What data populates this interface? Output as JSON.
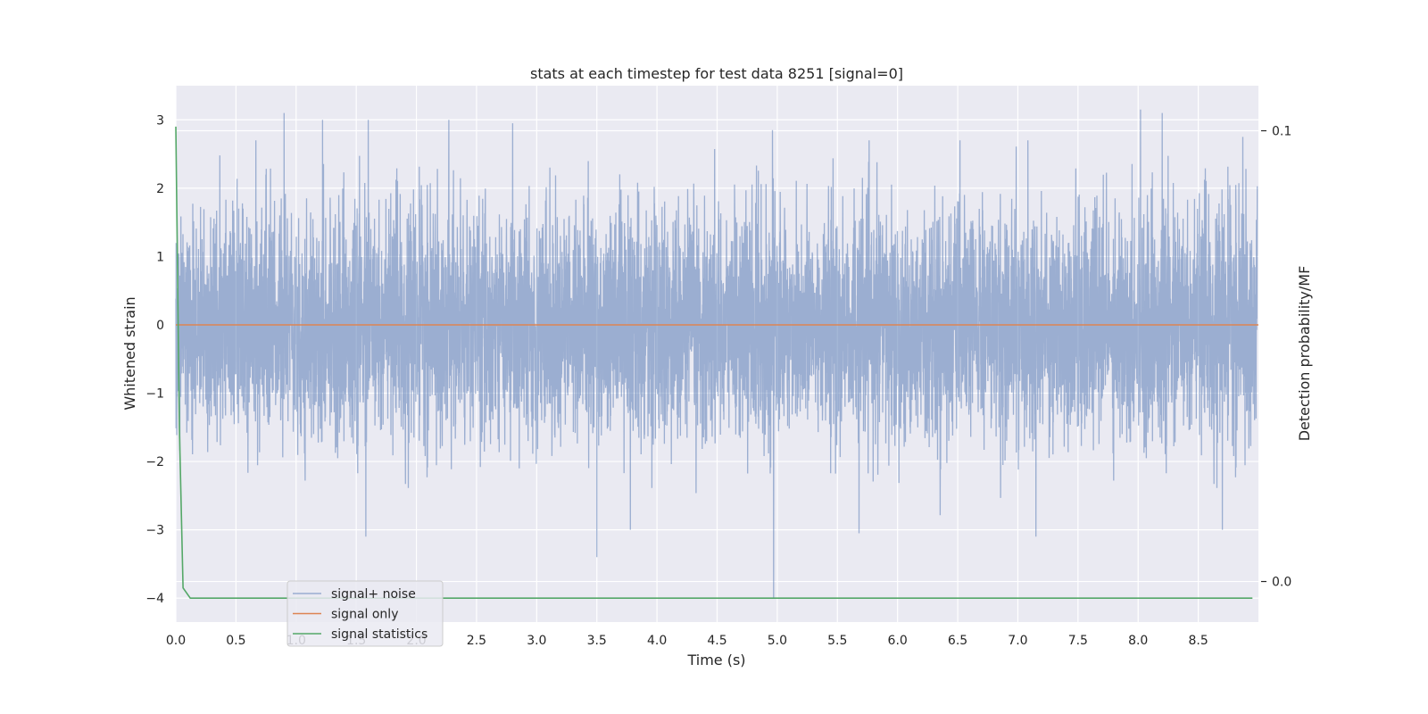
{
  "chart_data": {
    "type": "line",
    "title": "stats at each timestep for test data 8251 [signal=0]",
    "xlabel": "Time (s)",
    "ylabel": "Whitened strain",
    "y2label": "Detection probability/MF",
    "xlim": [
      0.0,
      9.0
    ],
    "ylim": [
      -4.35,
      3.5
    ],
    "y2lim": [
      -0.009,
      0.11
    ],
    "x_ticks": [
      0.0,
      0.5,
      1.0,
      1.5,
      2.0,
      2.5,
      3.0,
      3.5,
      4.0,
      4.5,
      5.0,
      5.5,
      6.0,
      6.5,
      7.0,
      7.5,
      8.0,
      8.5
    ],
    "x_tick_labels": [
      "0.0",
      "0.5",
      "1.0",
      "1.5",
      "2.0",
      "2.5",
      "3.0",
      "3.5",
      "4.0",
      "4.5",
      "5.0",
      "5.5",
      "6.0",
      "6.5",
      "7.0",
      "7.5",
      "8.0",
      "8.5"
    ],
    "y_ticks": [
      3,
      2,
      1,
      0,
      -1,
      -2,
      -3,
      -4
    ],
    "y_tick_labels": [
      "3",
      "2",
      "1",
      "0",
      "−1",
      "−2",
      "−3",
      "−4"
    ],
    "y2_ticks": [
      0.1,
      0.0
    ],
    "y2_tick_labels": [
      "0.1",
      "0.0"
    ],
    "grid": true,
    "legend_position": "lower-left",
    "series": [
      {
        "name": "signal+ noise",
        "color": "#4c72b0",
        "axis": "left",
        "style": "dense noise trace, min -4.0, max 3.15",
        "notable_peaks": [
          {
            "x": 0.9,
            "y": 3.1
          },
          {
            "x": 1.22,
            "y": 3.0
          },
          {
            "x": 1.6,
            "y": 3.0
          },
          {
            "x": 2.27,
            "y": 3.0
          },
          {
            "x": 2.8,
            "y": 2.95
          },
          {
            "x": 4.96,
            "y": 2.85
          },
          {
            "x": 8.02,
            "y": 3.15
          },
          {
            "x": 8.2,
            "y": 3.1
          },
          {
            "x": 8.87,
            "y": 2.75
          }
        ],
        "notable_troughs": [
          {
            "x": 1.58,
            "y": -3.1
          },
          {
            "x": 3.5,
            "y": -3.4
          },
          {
            "x": 4.97,
            "y": -4.0
          },
          {
            "x": 5.68,
            "y": -3.05
          },
          {
            "x": 7.15,
            "y": -3.1
          },
          {
            "x": 8.7,
            "y": -3.0
          }
        ]
      },
      {
        "name": "signal only",
        "color": "#dd8452",
        "axis": "left",
        "x": [
          0.0,
          9.0
        ],
        "y": [
          0.0,
          0.0
        ]
      },
      {
        "name": "signal statistics",
        "color": "#55a868",
        "axis": "left",
        "x": [
          0.0,
          0.03,
          0.06,
          0.12,
          0.5,
          1.0,
          2.0,
          3.0,
          4.0,
          5.0,
          6.0,
          7.0,
          8.0,
          8.95
        ],
        "y": [
          2.9,
          -1.5,
          -3.85,
          -4.0,
          -4.0,
          -4.0,
          -4.0,
          -4.0,
          -4.0,
          -4.0,
          -4.0,
          -4.0,
          -4.0,
          -4.0
        ]
      }
    ]
  }
}
